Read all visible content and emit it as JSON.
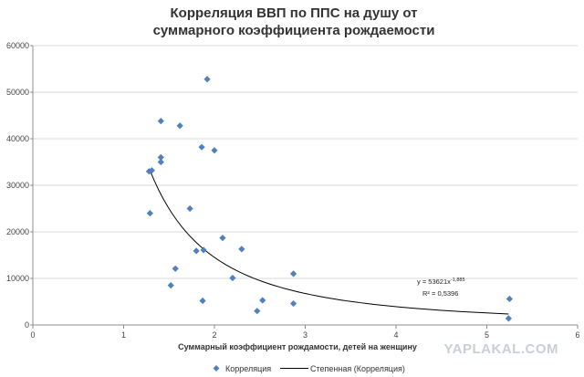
{
  "chart_data": {
    "type": "scatter",
    "title_lines": [
      "Корреляция ВВП по ППС на душу от",
      "суммарного коэффициента рождаемости"
    ],
    "xlabel": "Суммарный коэффициент рождамости, детей на женщину",
    "ylabel": "",
    "xlim": [
      0,
      6
    ],
    "ylim": [
      0,
      60000
    ],
    "x_ticks": [
      "0",
      "1",
      "2",
      "3",
      "4",
      "5",
      "6"
    ],
    "y_ticks": [
      "0",
      "10000",
      "20000",
      "30000",
      "40000",
      "50000",
      "60000"
    ],
    "grid": "horizontal",
    "legend_position": "bottom",
    "series": [
      {
        "name": "Корреляция",
        "color": "#4f81bd",
        "marker": "diamond",
        "points": [
          [
            1.28,
            33000
          ],
          [
            1.31,
            33200
          ],
          [
            1.29,
            24000
          ],
          [
            1.41,
            43800
          ],
          [
            1.41,
            36000
          ],
          [
            1.41,
            35000
          ],
          [
            1.62,
            42800
          ],
          [
            1.92,
            52800
          ],
          [
            1.86,
            38200
          ],
          [
            2.0,
            37500
          ],
          [
            1.73,
            25000
          ],
          [
            2.09,
            18700
          ],
          [
            1.8,
            15900
          ],
          [
            1.88,
            16100
          ],
          [
            2.3,
            16300
          ],
          [
            1.57,
            12100
          ],
          [
            2.2,
            10100
          ],
          [
            1.52,
            8500
          ],
          [
            1.87,
            5200
          ],
          [
            2.87,
            11000
          ],
          [
            2.53,
            5300
          ],
          [
            2.47,
            3000
          ],
          [
            2.87,
            4600
          ],
          [
            5.25,
            5600
          ],
          [
            5.24,
            1400
          ]
        ]
      }
    ],
    "trendline": {
      "name": "Степенная (Корреляция)",
      "type": "power",
      "coefficient": 53621,
      "exponent": -1.885,
      "x_range": [
        1.29,
        5.24
      ],
      "equation_prefix": "y = 53621x",
      "equation_exponent": "-1,885",
      "r2_text": "R² = 0,5396",
      "color": "#000000"
    }
  },
  "watermark": "YAPLAKAL.COM"
}
